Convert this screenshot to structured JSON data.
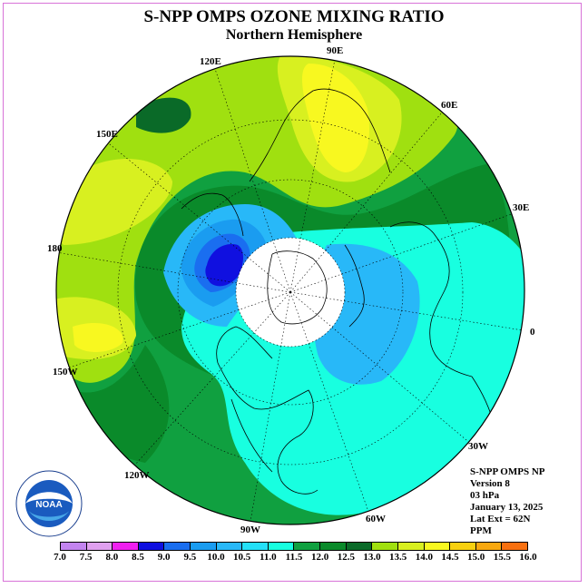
{
  "title": "S-NPP OMPS OZONE MIXING RATIO",
  "subtitle": "Northern Hemisphere",
  "longitude_labels": [
    "90E",
    "60E",
    "30E",
    "0",
    "30W",
    "60W",
    "90W",
    "120W",
    "150W",
    "180",
    "150E",
    "120E"
  ],
  "info": {
    "product": "S-NPP OMPS NP",
    "version": "Version 8",
    "level": "03 hPa",
    "date": "January 13, 2025",
    "lat_ext": "Lat Ext = 62N",
    "units": "PPM"
  },
  "logo_text": "NOAA",
  "colorbar": {
    "ticks": [
      "7.0",
      "7.5",
      "8.0",
      "8.5",
      "9.0",
      "9.5",
      "10.0",
      "10.5",
      "11.0",
      "11.5",
      "12.0",
      "12.5",
      "13.0",
      "13.5",
      "14.0",
      "14.5",
      "15.0",
      "15.5",
      "16.0"
    ],
    "colors": [
      "#c384f0",
      "#e0a0f0",
      "#f020f0",
      "#1010e0",
      "#1a6ef0",
      "#1a9cf0",
      "#28b8f8",
      "#24e0f8",
      "#18ffe0",
      "#10a040",
      "#0a8a2a",
      "#0a6a28",
      "#a0e010",
      "#d8f020",
      "#f8f820",
      "#f8d010",
      "#f8a810",
      "#f87010",
      "#f00010",
      "#c00020",
      "#805030"
    ]
  }
}
